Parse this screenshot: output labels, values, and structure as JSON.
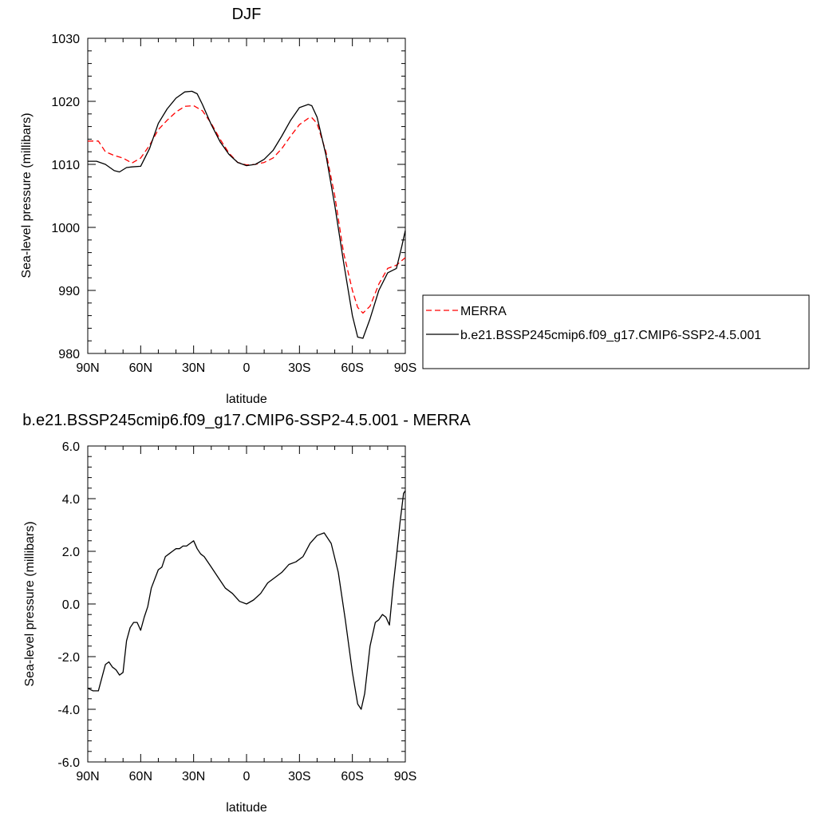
{
  "chart_data": [
    {
      "type": "line",
      "title": "DJF",
      "xlabel": "latitude",
      "ylabel": "Sea-level pressure (millibars)",
      "x_tick_values": [
        -90,
        -60,
        -30,
        0,
        30,
        60,
        90
      ],
      "x_tick_labels": [
        "90N",
        "60N",
        "30N",
        "0",
        "30S",
        "60S",
        "90S"
      ],
      "xlim": [
        -90,
        90
      ],
      "ylim": [
        980,
        1030
      ],
      "y_tick_values": [
        980,
        990,
        1000,
        1010,
        1020,
        1030
      ],
      "y_tick_labels": [
        "980",
        "990",
        "1000",
        "1010",
        "1020",
        "1030"
      ],
      "legend_position": "right",
      "series": [
        {
          "name": "MERRA",
          "color": "#ff0000",
          "dash": "dashed",
          "x": [
            -90,
            -84,
            -80,
            -75,
            -70,
            -65,
            -60,
            -55,
            -50,
            -45,
            -40,
            -35,
            -30,
            -25,
            -20,
            -15,
            -10,
            -5,
            0,
            5,
            10,
            15,
            20,
            25,
            30,
            35,
            37,
            40,
            45,
            50,
            55,
            60,
            63,
            66,
            70,
            75,
            80,
            85,
            90
          ],
          "y": [
            1013.7,
            1013.7,
            1012.0,
            1011.4,
            1011.0,
            1010.2,
            1011.0,
            1013.0,
            1015.5,
            1017.0,
            1018.3,
            1019.2,
            1019.3,
            1018.5,
            1016.5,
            1014.0,
            1011.8,
            1010.3,
            1009.9,
            1010.0,
            1010.3,
            1011.0,
            1012.5,
            1014.5,
            1016.3,
            1017.3,
            1017.4,
            1016.5,
            1012.0,
            1005.0,
            996.0,
            990.0,
            987.3,
            986.4,
            987.5,
            991.0,
            993.5,
            994.0,
            995.2
          ]
        },
        {
          "name": "b.e21.BSSP245cmip6.f09_g17.CMIP6-SSP2-4.5.001",
          "color": "#000000",
          "dash": "solid",
          "x": [
            -90,
            -85,
            -80,
            -75,
            -72,
            -68,
            -65,
            -60,
            -55,
            -50,
            -45,
            -40,
            -35,
            -31,
            -28,
            -25,
            -20,
            -15,
            -10,
            -5,
            0,
            5,
            10,
            15,
            20,
            25,
            30,
            35,
            37,
            40,
            45,
            50,
            55,
            60,
            63,
            66,
            70,
            75,
            80,
            85,
            88,
            90
          ],
          "y": [
            1010.5,
            1010.5,
            1010.0,
            1009.0,
            1008.8,
            1009.5,
            1009.6,
            1009.7,
            1012.5,
            1016.5,
            1018.8,
            1020.5,
            1021.5,
            1021.6,
            1021.2,
            1019.5,
            1016.3,
            1013.6,
            1011.6,
            1010.3,
            1009.8,
            1010.0,
            1010.8,
            1012.2,
            1014.5,
            1017.0,
            1019.0,
            1019.5,
            1019.3,
            1017.5,
            1011.5,
            1003.5,
            994.5,
            986.0,
            982.6,
            982.4,
            985.5,
            990.0,
            992.8,
            993.5,
            997.0,
            999.5
          ]
        }
      ]
    },
    {
      "type": "line",
      "title": "b.e21.BSSP245cmip6.f09_g17.CMIP6-SSP2-4.5.001 - MERRA",
      "xlabel": "latitude",
      "ylabel": "Sea-level pressure (millibars)",
      "x_tick_values": [
        -90,
        -60,
        -30,
        0,
        30,
        60,
        90
      ],
      "x_tick_labels": [
        "90N",
        "60N",
        "30N",
        "0",
        "30S",
        "60S",
        "90S"
      ],
      "xlim": [
        -90,
        90
      ],
      "ylim": [
        -6,
        6
      ],
      "y_tick_values": [
        -6,
        -4,
        -2,
        0,
        2,
        4,
        6
      ],
      "y_tick_labels": [
        "-6.0",
        "-4.0",
        "-2.0",
        "0.0",
        "2.0",
        "4.0",
        "6.0"
      ],
      "series": [
        {
          "name": "",
          "color": "#000000",
          "dash": "solid",
          "x": [
            -90,
            -87,
            -84,
            -80,
            -78,
            -76,
            -74,
            -72,
            -70,
            -68,
            -66,
            -64,
            -62,
            -60,
            -58,
            -56,
            -54,
            -50,
            -48,
            -46,
            -44,
            -42,
            -40,
            -38,
            -36,
            -34,
            -32,
            -30,
            -28,
            -26,
            -24,
            -20,
            -16,
            -12,
            -8,
            -4,
            0,
            4,
            8,
            12,
            16,
            20,
            24,
            28,
            32,
            36,
            40,
            44,
            48,
            52,
            56,
            60,
            63,
            65,
            67,
            70,
            73,
            75,
            77,
            79,
            81,
            83,
            85,
            87,
            89,
            90
          ],
          "y": [
            -3.2,
            -3.3,
            -3.3,
            -2.3,
            -2.2,
            -2.4,
            -2.5,
            -2.7,
            -2.6,
            -1.4,
            -0.9,
            -0.7,
            -0.7,
            -1.0,
            -0.5,
            -0.1,
            0.6,
            1.3,
            1.4,
            1.8,
            1.9,
            2.0,
            2.1,
            2.1,
            2.2,
            2.2,
            2.3,
            2.4,
            2.1,
            1.9,
            1.8,
            1.4,
            1.0,
            0.6,
            0.4,
            0.1,
            0.0,
            0.15,
            0.4,
            0.8,
            1.0,
            1.2,
            1.5,
            1.6,
            1.8,
            2.3,
            2.6,
            2.7,
            2.3,
            1.2,
            -0.6,
            -2.6,
            -3.8,
            -4.0,
            -3.4,
            -1.6,
            -0.7,
            -0.6,
            -0.4,
            -0.5,
            -0.8,
            0.6,
            1.8,
            3.1,
            4.2,
            4.3
          ]
        }
      ]
    }
  ]
}
